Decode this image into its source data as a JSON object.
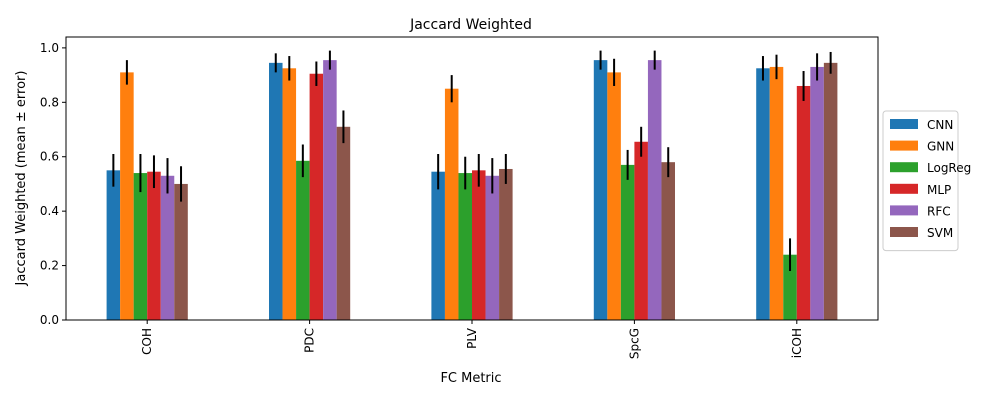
{
  "chart_data": {
    "type": "bar",
    "title": "Jaccard Weighted",
    "xlabel": "FC Metric",
    "ylabel": "Jaccard Weighted (mean ± error)",
    "ylim": [
      0,
      1.04
    ],
    "yticks": [
      0.0,
      0.2,
      0.4,
      0.6,
      0.8,
      1.0
    ],
    "ytick_labels": [
      "0.0",
      "0.2",
      "0.4",
      "0.6",
      "0.8",
      "1.0"
    ],
    "categories": [
      "COH",
      "PDC",
      "PLV",
      "SpcG",
      "iCOH"
    ],
    "legend_position": "center-right",
    "grid": false,
    "series": [
      {
        "name": "CNN",
        "color": "#1f77b4",
        "values": [
          0.55,
          0.945,
          0.545,
          0.955,
          0.925
        ],
        "errors": [
          0.06,
          0.035,
          0.065,
          0.035,
          0.045
        ]
      },
      {
        "name": "GNN",
        "color": "#ff7f0e",
        "values": [
          0.91,
          0.925,
          0.85,
          0.91,
          0.93
        ],
        "errors": [
          0.045,
          0.045,
          0.05,
          0.05,
          0.045
        ]
      },
      {
        "name": "LogReg",
        "color": "#2ca02c",
        "values": [
          0.54,
          0.585,
          0.54,
          0.57,
          0.24
        ],
        "errors": [
          0.07,
          0.06,
          0.06,
          0.055,
          0.06
        ]
      },
      {
        "name": "MLP",
        "color": "#d62728",
        "values": [
          0.545,
          0.905,
          0.55,
          0.655,
          0.86
        ],
        "errors": [
          0.06,
          0.045,
          0.06,
          0.055,
          0.055
        ]
      },
      {
        "name": "RFC",
        "color": "#9467bd",
        "values": [
          0.53,
          0.955,
          0.53,
          0.955,
          0.93
        ],
        "errors": [
          0.065,
          0.035,
          0.065,
          0.035,
          0.05
        ]
      },
      {
        "name": "SVM",
        "color": "#8c564b",
        "values": [
          0.5,
          0.71,
          0.555,
          0.58,
          0.945
        ],
        "errors": [
          0.065,
          0.06,
          0.055,
          0.055,
          0.04
        ]
      }
    ]
  }
}
